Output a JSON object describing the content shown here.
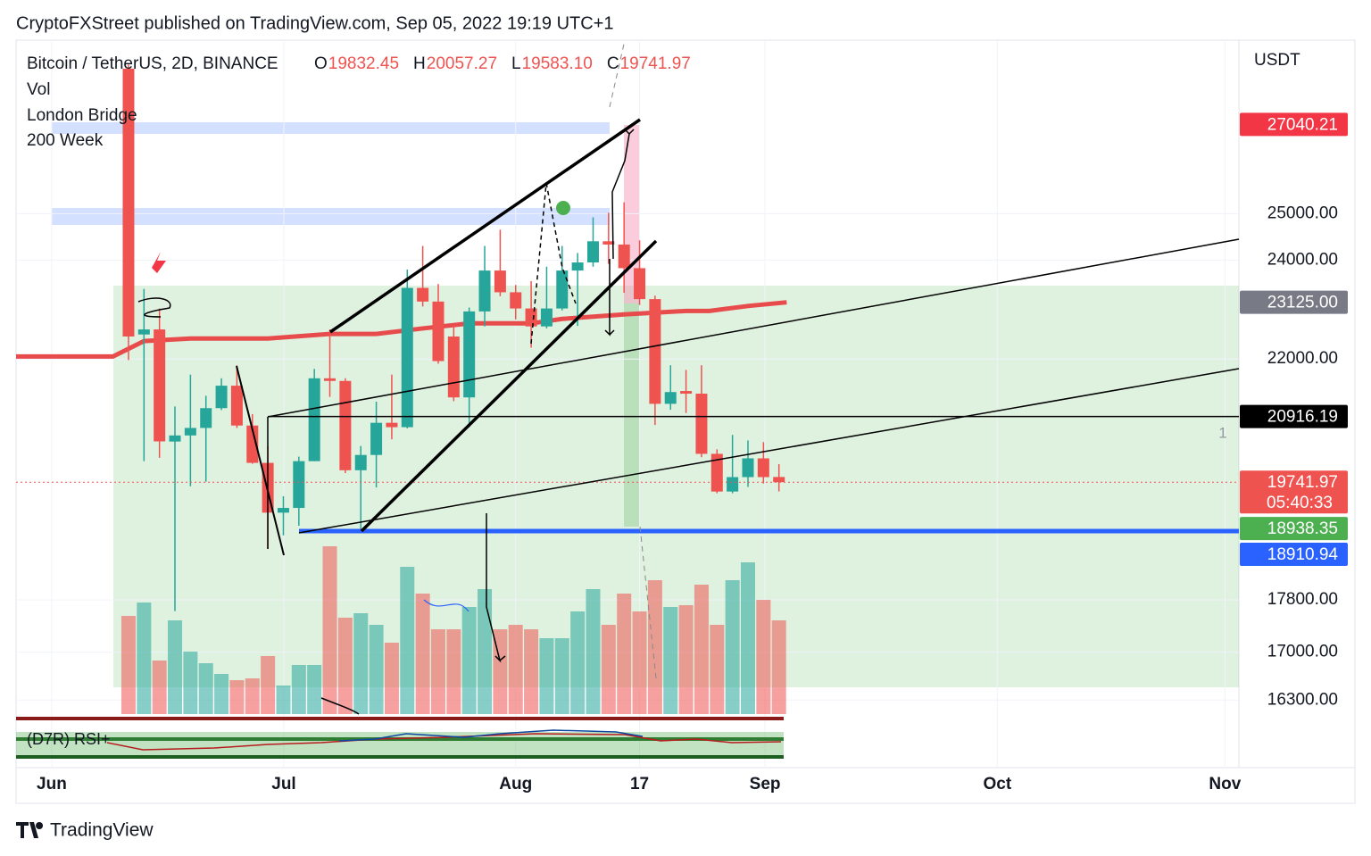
{
  "header": "CryptoFXStreet published on TradingView.com, Sep 05, 2022 19:19 UTC+1",
  "footer": "TradingView",
  "chart_data": {
    "type": "candlestick",
    "symbol": "Bitcoin / TetherUS, 2D, BINANCE",
    "ohlc_labels": [
      "O",
      "H",
      "L",
      "C"
    ],
    "ohlc_value_labels": [
      "19832.45",
      "20057.27",
      "19583.10",
      "19741.97"
    ],
    "indicators": [
      "Vol",
      "London Bridge",
      "200 Week"
    ],
    "currency": "USDT",
    "log": true,
    "ylim": [
      16100,
      29120
    ],
    "yticks": [
      {
        "value": 25000,
        "label": "25000.00"
      },
      {
        "value": 24000,
        "label": "24000.00"
      },
      {
        "value": 22000,
        "label": "22000.00"
      },
      {
        "value": 17800,
        "label": "17800.00"
      },
      {
        "value": 17000,
        "label": "17000.00"
      },
      {
        "value": 16300,
        "label": "16300.00"
      }
    ],
    "xlim": [
      -7.26,
      71.7
    ],
    "xticks": [
      {
        "value": -4.96,
        "label": "Jun"
      },
      {
        "value": 10.03,
        "label": "Jul"
      },
      {
        "value": 25,
        "label": "Aug"
      },
      {
        "value": 33,
        "label": "17"
      },
      {
        "value": 41.1,
        "label": "Sep"
      },
      {
        "value": 56.1,
        "label": "Oct"
      },
      {
        "value": 70.8,
        "label": "Nov"
      }
    ],
    "x": [
      0,
      1,
      2,
      3,
      4,
      5,
      6,
      7,
      8,
      9,
      10,
      11,
      12,
      13,
      14,
      15,
      16,
      17,
      18,
      19,
      20,
      21,
      22,
      23,
      24,
      25,
      26,
      27,
      28,
      29,
      30,
      31,
      32,
      33,
      34,
      35,
      36,
      37,
      38,
      39,
      40,
      41,
      42
    ],
    "open": [
      28400,
      22480,
      22580,
      20460,
      20570,
      20706,
      21070,
      21490,
      20750,
      20080,
      19220,
      19300,
      20110,
      21630,
      21580,
      19950,
      20220,
      20800,
      20720,
      23420,
      23140,
      22440,
      21270,
      22940,
      23780,
      23330,
      23000,
      22640,
      23000,
      23780,
      23950,
      24400,
      24330,
      23830,
      23190,
      21150,
      21390,
      21340,
      20240,
      19580,
      19830,
      20160,
      19832.45
    ],
    "high": [
      28500,
      23400,
      23000,
      21100,
      21700,
      21300,
      21630,
      21880,
      20960,
      20380,
      19500,
      20190,
      21810,
      22580,
      21630,
      20380,
      21190,
      21700,
      23800,
      24300,
      23500,
      22650,
      23020,
      24300,
      24650,
      23480,
      23560,
      23860,
      24300,
      24150,
      24920,
      25020,
      25250,
      24420,
      23260,
      21880,
      21790,
      21880,
      20320,
      20580,
      20480,
      20450,
      20057.27
    ],
    "low": [
      21980,
      20110,
      20170,
      17626,
      19670,
      19750,
      21035,
      20706,
      20064,
      18620,
      18840,
      19000,
      20110,
      21280,
      19900,
      18900,
      19650,
      20500,
      20700,
      23040,
      21910,
      21200,
      20720,
      22640,
      23250,
      22780,
      22220,
      22600,
      22960,
      22650,
      23860,
      23920,
      23320,
      23070,
      20760,
      21040,
      20980,
      20180,
      19550,
      19550,
      19660,
      19720,
      19583.1
    ],
    "close": [
      22440,
      22580,
      20463,
      20570,
      20706,
      21070,
      21490,
      20750,
      20080,
      19220,
      19300,
      20110,
      21630,
      21580,
      19950,
      20220,
      20800,
      20720,
      23420,
      23140,
      21960,
      21270,
      22940,
      23780,
      23330,
      23000,
      22640,
      23000,
      23780,
      23950,
      24400,
      24330,
      23830,
      23190,
      21150,
      21370,
      21340,
      20240,
      19580,
      19830,
      20160,
      19830,
      19741.97
    ],
    "volume": [
      110,
      125,
      60,
      105,
      70,
      57,
      45,
      38,
      40,
      65,
      32,
      55,
      55,
      188,
      108,
      113,
      100,
      80,
      165,
      135,
      95,
      95,
      120,
      140,
      95,
      100,
      95,
      85,
      85,
      115,
      140,
      100,
      135,
      115,
      150,
      120,
      122,
      145,
      100,
      150,
      170,
      128,
      105
    ],
    "vlim": [
      0,
      200
    ],
    "up_color": "#26a69a",
    "down_color": "#ef5350",
    "ma": {
      "color": "#e84b4b",
      "x": [
        -7.26,
        -1,
        1,
        4,
        9,
        13,
        16,
        19,
        22,
        26,
        28,
        32,
        36,
        37.5,
        40,
        42.5
      ],
      "values": [
        22050,
        22050,
        22350,
        22400,
        22400,
        22490,
        22490,
        22600,
        22700,
        22700,
        22790,
        22880,
        22950,
        22950,
        23050,
        23125
      ]
    },
    "levels": [
      {
        "value": 27040.21,
        "label": "27040.21",
        "color": "#f23645"
      },
      {
        "value": 23125,
        "label": "23125.00",
        "color": "#787b86"
      },
      {
        "value": 20916.19,
        "label": "20916.19",
        "color": "#000000",
        "line_color": "#000000"
      },
      {
        "value": 19741.97,
        "label": "19741.97",
        "color": "#ef5350",
        "countdown": "05:40:33"
      },
      {
        "value": 18938.35,
        "label": "18938.35",
        "color": "#4caf50"
      },
      {
        "value": 18910.94,
        "label": "18910.94",
        "color": "#2962ff",
        "line_color": "#2962ff"
      }
    ],
    "annotation": "1",
    "rsi_label": "(D7R) RSI+"
  }
}
